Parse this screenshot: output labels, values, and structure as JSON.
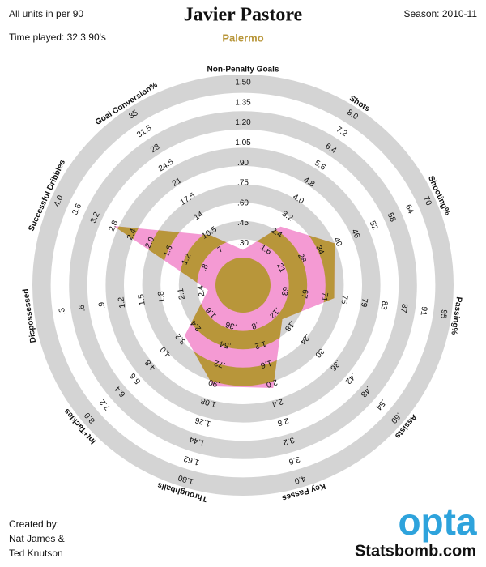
{
  "header": {
    "units_note": "All units in per 90",
    "time_played": "Time played: 32.3 90's",
    "season": "Season: 2010-11"
  },
  "chart_data": {
    "type": "radar",
    "title": "Javier Pastore",
    "subtitle": "Palermo",
    "colors": {
      "ring": "#d4d4d4",
      "in_ring": "#b8963a",
      "between_rings": "#f49ad3",
      "subtitle": "#b8963a"
    },
    "axes": [
      {
        "name": "Non-Penalty Goals",
        "lim": [
          0.15,
          1.5
        ],
        "ticks": [
          {
            "value": 0.3,
            "label": ".30"
          },
          {
            "value": 0.45,
            "label": ".45"
          },
          {
            "value": 0.6,
            "label": ".60"
          },
          {
            "value": 0.75,
            "label": ".75"
          },
          {
            "value": 0.9,
            "label": ".90"
          },
          1.05,
          {
            "value": 1.2,
            "label": "1.20"
          },
          1.35,
          {
            "value": 1.5,
            "label": "1.50"
          }
        ]
      },
      {
        "name": "Shots",
        "lim": [
          0.8,
          8.0
        ],
        "ticks": [
          1.6,
          2.4,
          3.2,
          {
            "value": 4.0,
            "label": "4.0"
          },
          4.8,
          5.6,
          6.4,
          7.2,
          {
            "value": 8.0,
            "label": "8.0"
          }
        ]
      },
      {
        "name": "Shooting%",
        "lim": [
          15,
          70
        ],
        "ticks": [
          21,
          28,
          34,
          40,
          46,
          52,
          58,
          64,
          70
        ]
      },
      {
        "name": "Passing%",
        "lim": [
          59,
          95
        ],
        "ticks": [
          63,
          67,
          71,
          75,
          79,
          83,
          87,
          91,
          95
        ]
      },
      {
        "name": "Assists",
        "lim": [
          0.06,
          0.6
        ],
        "ticks": [
          {
            "value": 0.12,
            "label": ".12"
          },
          {
            "value": 0.18,
            "label": ".18"
          },
          {
            "value": 0.24,
            "label": ".24"
          },
          {
            "value": 0.3,
            "label": ".30"
          },
          {
            "value": 0.36,
            "label": ".36"
          },
          {
            "value": 0.42,
            "label": ".42"
          },
          {
            "value": 0.48,
            "label": ".48"
          },
          {
            "value": 0.54,
            "label": ".54"
          },
          {
            "value": 0.6,
            "label": ".60"
          }
        ]
      },
      {
        "name": "Key Passes",
        "lim": [
          0.4,
          4.0
        ],
        "ticks": [
          {
            "value": 0.8,
            "label": ".8"
          },
          1.2,
          1.6,
          {
            "value": 2.0,
            "label": "2.0"
          },
          2.4,
          2.8,
          3.2,
          3.6,
          {
            "value": 4.0,
            "label": "4.0"
          }
        ]
      },
      {
        "name": "Throughballs",
        "lim": [
          0.18,
          1.8
        ],
        "ticks": [
          {
            "value": 0.36,
            "label": ".36"
          },
          {
            "value": 0.54,
            "label": ".54"
          },
          {
            "value": 0.72,
            "label": ".72"
          },
          {
            "value": 0.9,
            "label": ".90"
          },
          1.08,
          1.26,
          1.44,
          1.62,
          {
            "value": 1.8,
            "label": "1.80"
          }
        ]
      },
      {
        "name": "Int+Tackles",
        "lim": [
          0.8,
          8.0
        ],
        "ticks": [
          1.6,
          2.4,
          3.2,
          {
            "value": 4.0,
            "label": "4.0"
          },
          4.8,
          5.6,
          6.4,
          7.2,
          {
            "value": 8.0,
            "label": "8.0"
          }
        ]
      },
      {
        "name": "Dispossessed",
        "lim": [
          2.7,
          0
        ],
        "ticks": [
          2.4,
          2.1,
          1.8,
          1.5,
          1.2,
          {
            "value": 0.9,
            "label": ".9"
          },
          {
            "value": 0.6,
            "label": ".6"
          },
          {
            "value": 0.3,
            "label": ".3"
          }
        ]
      },
      {
        "name": "Successful Dribbles",
        "lim": [
          0.4,
          4.0
        ],
        "ticks": [
          {
            "value": 0.8,
            "label": ".8"
          },
          1.2,
          1.6,
          {
            "value": 2.0,
            "label": "2.0"
          },
          2.4,
          2.8,
          3.2,
          3.6,
          {
            "value": 4.0,
            "label": "4.0"
          }
        ]
      },
      {
        "name": "Goal Conversion%",
        "lim": [
          3.5,
          35
        ],
        "ticks": [
          7,
          10.5,
          14,
          17.5,
          21,
          24.5,
          28,
          31.5,
          35
        ]
      }
    ],
    "values": [
      0.25,
      2.7,
      39,
      73,
      0.15,
      2.1,
      0.93,
      3.0,
      2.5,
      2.8,
      10
    ]
  },
  "footer": {
    "credit": [
      "Created by:",
      "Nat James &",
      "Ted Knutson"
    ],
    "brand": "opta",
    "site": "Statsbomb.com"
  }
}
